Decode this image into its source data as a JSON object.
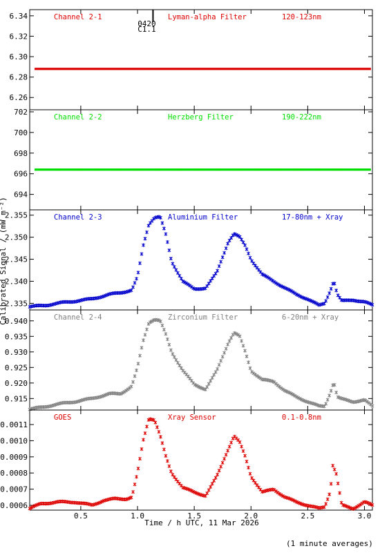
{
  "ylabel": "Calibrated Signal / (mW m⁻²)",
  "xlabel": "Time / h UTC, 11 Mar 2026",
  "footer_note": "(1 minute averages)",
  "top_marker": {
    "lines": [
      "0420",
      "C1.1"
    ],
    "x": 1.1
  },
  "x_axis": {
    "range": [
      0.05,
      3.07
    ],
    "ticks": [
      0.5,
      1.0,
      1.5,
      2.0,
      2.5,
      3.0
    ],
    "tick_labels": [
      "0.5",
      "1.0",
      "1.5",
      "2.0",
      "2.5",
      "3.0"
    ]
  },
  "chart_data": [
    {
      "type": "scatter",
      "channel": "Channel 2-1",
      "filter": "Lyman-alpha Filter",
      "band": "120-123nm",
      "color": "#dd0000",
      "ylim": [
        6.248,
        6.346
      ],
      "y_ticks": [
        6.26,
        6.28,
        6.3,
        6.32,
        6.34
      ],
      "y_tick_labels": [
        "6.26",
        "6.28",
        "6.30",
        "6.32",
        "6.34"
      ],
      "x": [
        0.1,
        3.05
      ],
      "y": [
        6.288,
        6.288
      ],
      "profile": "flat"
    },
    {
      "type": "scatter",
      "channel": "Channel 2-2",
      "filter": "Herzberg Filter",
      "band": "190-222nm",
      "color": "#00dd00",
      "ylim": [
        692.5,
        702.2
      ],
      "y_ticks": [
        694,
        696,
        698,
        700,
        702
      ],
      "y_tick_labels": [
        "694",
        "696",
        "698",
        "700",
        "702"
      ],
      "x": [
        0.1,
        3.05
      ],
      "y": [
        696.4,
        696.4
      ],
      "profile": "flat"
    },
    {
      "type": "scatter",
      "channel": "Channel 2-3",
      "filter": "Aluminium Filter",
      "band": "17-80nm + Xray",
      "color": "#0000cc",
      "ylim": [
        2.3335,
        2.3562
      ],
      "y_ticks": [
        2.335,
        2.34,
        2.345,
        2.35,
        2.355
      ],
      "y_tick_labels": [
        "2.335",
        "2.340",
        "2.345",
        "2.350",
        "2.355"
      ],
      "x": [
        0.05,
        0.2,
        0.35,
        0.45,
        0.6,
        0.75,
        0.85,
        0.95,
        1.0,
        1.05,
        1.1,
        1.15,
        1.2,
        1.25,
        1.3,
        1.4,
        1.5,
        1.6,
        1.7,
        1.8,
        1.85,
        1.9,
        1.95,
        2.0,
        2.1,
        2.2,
        2.3,
        2.4,
        2.5,
        2.6,
        2.65,
        2.7,
        2.73,
        2.76,
        2.8,
        2.9,
        3.0,
        3.07
      ],
      "y": [
        2.3342,
        2.3346,
        2.3352,
        2.3355,
        2.336,
        2.337,
        2.3374,
        2.338,
        2.341,
        2.348,
        2.353,
        2.3545,
        2.3546,
        2.3505,
        2.3445,
        2.34,
        2.3382,
        2.3385,
        2.342,
        2.349,
        2.3508,
        2.35,
        2.348,
        2.345,
        2.3415,
        2.34,
        2.3385,
        2.337,
        2.336,
        2.3345,
        2.335,
        2.338,
        2.3402,
        2.337,
        2.3355,
        2.3358,
        2.3353,
        2.3346
      ],
      "profile": "curve"
    },
    {
      "type": "scatter",
      "channel": "Channel 2-4",
      "filter": "Zirconium Filter",
      "band": "6-20nm + Xray",
      "color": "#808080",
      "ylim": [
        0.9113,
        0.9435
      ],
      "y_ticks": [
        0.915,
        0.92,
        0.925,
        0.93,
        0.935,
        0.94
      ],
      "y_tick_labels": [
        "0.915",
        "0.920",
        "0.925",
        "0.930",
        "0.935",
        "0.940"
      ],
      "x": [
        0.05,
        0.2,
        0.35,
        0.45,
        0.6,
        0.75,
        0.85,
        0.95,
        1.0,
        1.05,
        1.1,
        1.15,
        1.2,
        1.25,
        1.3,
        1.4,
        1.5,
        1.6,
        1.7,
        1.8,
        1.85,
        1.9,
        1.95,
        2.0,
        2.1,
        2.2,
        2.3,
        2.4,
        2.5,
        2.6,
        2.65,
        2.7,
        2.73,
        2.76,
        2.8,
        2.9,
        3.0,
        3.07
      ],
      "y": [
        0.9115,
        0.9125,
        0.9135,
        0.914,
        0.915,
        0.9165,
        0.9165,
        0.919,
        0.925,
        0.9335,
        0.9395,
        0.9405,
        0.94,
        0.9355,
        0.93,
        0.924,
        0.9195,
        0.918,
        0.924,
        0.933,
        0.9362,
        0.935,
        0.93,
        0.924,
        0.921,
        0.9205,
        0.9175,
        0.9155,
        0.914,
        0.9125,
        0.9125,
        0.917,
        0.9205,
        0.9155,
        0.9148,
        0.914,
        0.9145,
        0.9125
      ],
      "profile": "curve"
    },
    {
      "type": "scatter",
      "channel": "GOES",
      "filter": "Xray Sensor",
      "band": "0.1-0.8nm",
      "color": "#dd0000",
      "ylim": [
        0.00057,
        0.00119
      ],
      "y_ticks": [
        0.0006,
        0.0007,
        0.0008,
        0.0009,
        0.001,
        0.0011
      ],
      "y_tick_labels": [
        "0.0006",
        "0.0007",
        "0.0008",
        "0.0009",
        "0.0010",
        "0.0011"
      ],
      "x": [
        0.05,
        0.15,
        0.3,
        0.45,
        0.6,
        0.7,
        0.8,
        0.9,
        0.95,
        1.0,
        1.05,
        1.1,
        1.15,
        1.2,
        1.25,
        1.3,
        1.4,
        1.5,
        1.6,
        1.7,
        1.8,
        1.85,
        1.9,
        1.95,
        2.0,
        2.1,
        2.2,
        2.3,
        2.4,
        2.5,
        2.6,
        2.65,
        2.7,
        2.72,
        2.75,
        2.8,
        2.9,
        3.0,
        3.07
      ],
      "y": [
        0.00058,
        0.00061,
        0.00062,
        0.00062,
        0.0006,
        0.00063,
        0.00064,
        0.00064,
        0.00065,
        0.0008,
        0.001,
        0.00114,
        0.00113,
        0.00103,
        0.0009,
        0.0008,
        0.00071,
        0.00068,
        0.00066,
        0.00078,
        0.00095,
        0.00103,
        0.00099,
        0.0009,
        0.00078,
        0.00068,
        0.0007,
        0.00065,
        0.00062,
        0.0006,
        0.00058,
        0.00059,
        0.00069,
        0.00085,
        0.0008,
        0.0006,
        0.00058,
        0.00062,
        0.0006
      ],
      "profile": "curve"
    }
  ]
}
